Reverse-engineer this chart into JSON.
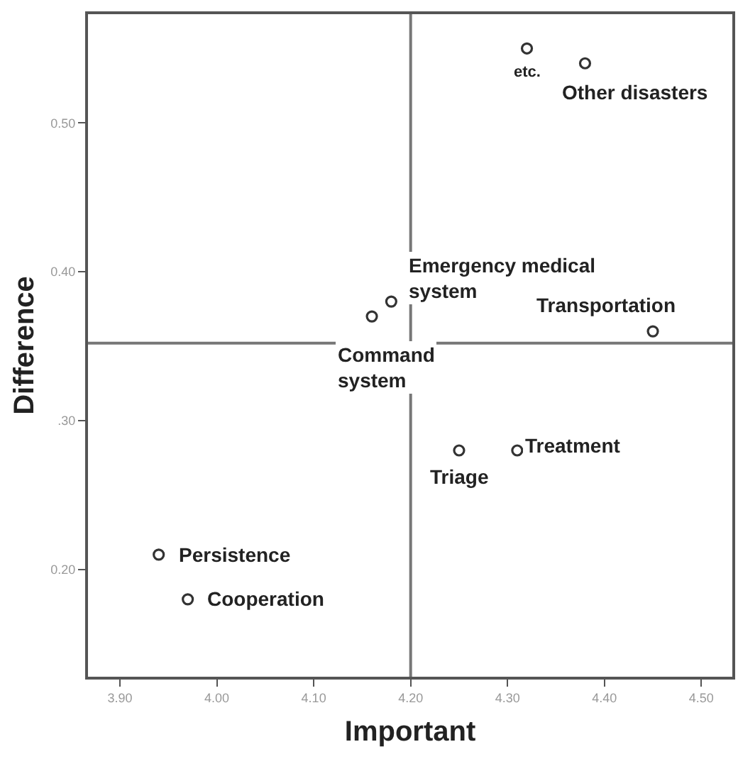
{
  "chart_data": {
    "type": "scatter",
    "xlabel": "Important",
    "ylabel": "Difference",
    "x": [
      4.32,
      4.38,
      4.18,
      4.16,
      4.45,
      4.25,
      4.31,
      3.94,
      3.97
    ],
    "values": [
      0.55,
      0.54,
      0.38,
      0.37,
      0.36,
      0.28,
      0.28,
      0.21,
      0.18
    ],
    "color": "#333333",
    "marker": "circle",
    "grid": false,
    "xlim": [
      3.867,
      4.532
    ],
    "xticks": [
      {
        "value": 3.9,
        "label": "3.90"
      },
      {
        "value": 4.0,
        "label": "4.00"
      },
      {
        "value": 4.1,
        "label": "4.10"
      },
      {
        "value": 4.2,
        "label": "4.20"
      },
      {
        "value": 4.3,
        "label": "4.30"
      },
      {
        "value": 4.4,
        "label": "4.40"
      },
      {
        "value": 4.5,
        "label": "4.50"
      }
    ],
    "ylim": [
      0.128,
      0.573
    ],
    "yticks": [
      {
        "value": 0.2,
        "label": "0.20"
      },
      {
        "value": 0.3,
        "label": ".30"
      },
      {
        "value": 0.4,
        "label": "0.40"
      },
      {
        "value": 0.5,
        "label": "0.50"
      }
    ],
    "ref_lines": [
      {
        "axis": "x",
        "value": 4.2,
        "color": "#777777"
      },
      {
        "axis": "y",
        "value": 0.352,
        "color": "#777777"
      }
    ],
    "annotations": [
      {
        "text": "etc.",
        "x": 4.32,
        "y": 0.55
      },
      {
        "text": "Other disasters",
        "x": 4.38,
        "y": 0.54
      },
      {
        "text": "Emergency medical\nsystem",
        "x": 4.18,
        "y": 0.38
      },
      {
        "text": "Command\nsystem",
        "x": 4.16,
        "y": 0.37
      },
      {
        "text": "Transportation",
        "x": 4.45,
        "y": 0.36
      },
      {
        "text": "Triage",
        "x": 4.25,
        "y": 0.28
      },
      {
        "text": "Treatment",
        "x": 4.31,
        "y": 0.28
      },
      {
        "text": "Persistence",
        "x": 3.94,
        "y": 0.21
      },
      {
        "text": "Cooperation",
        "x": 3.97,
        "y": 0.18
      }
    ]
  }
}
